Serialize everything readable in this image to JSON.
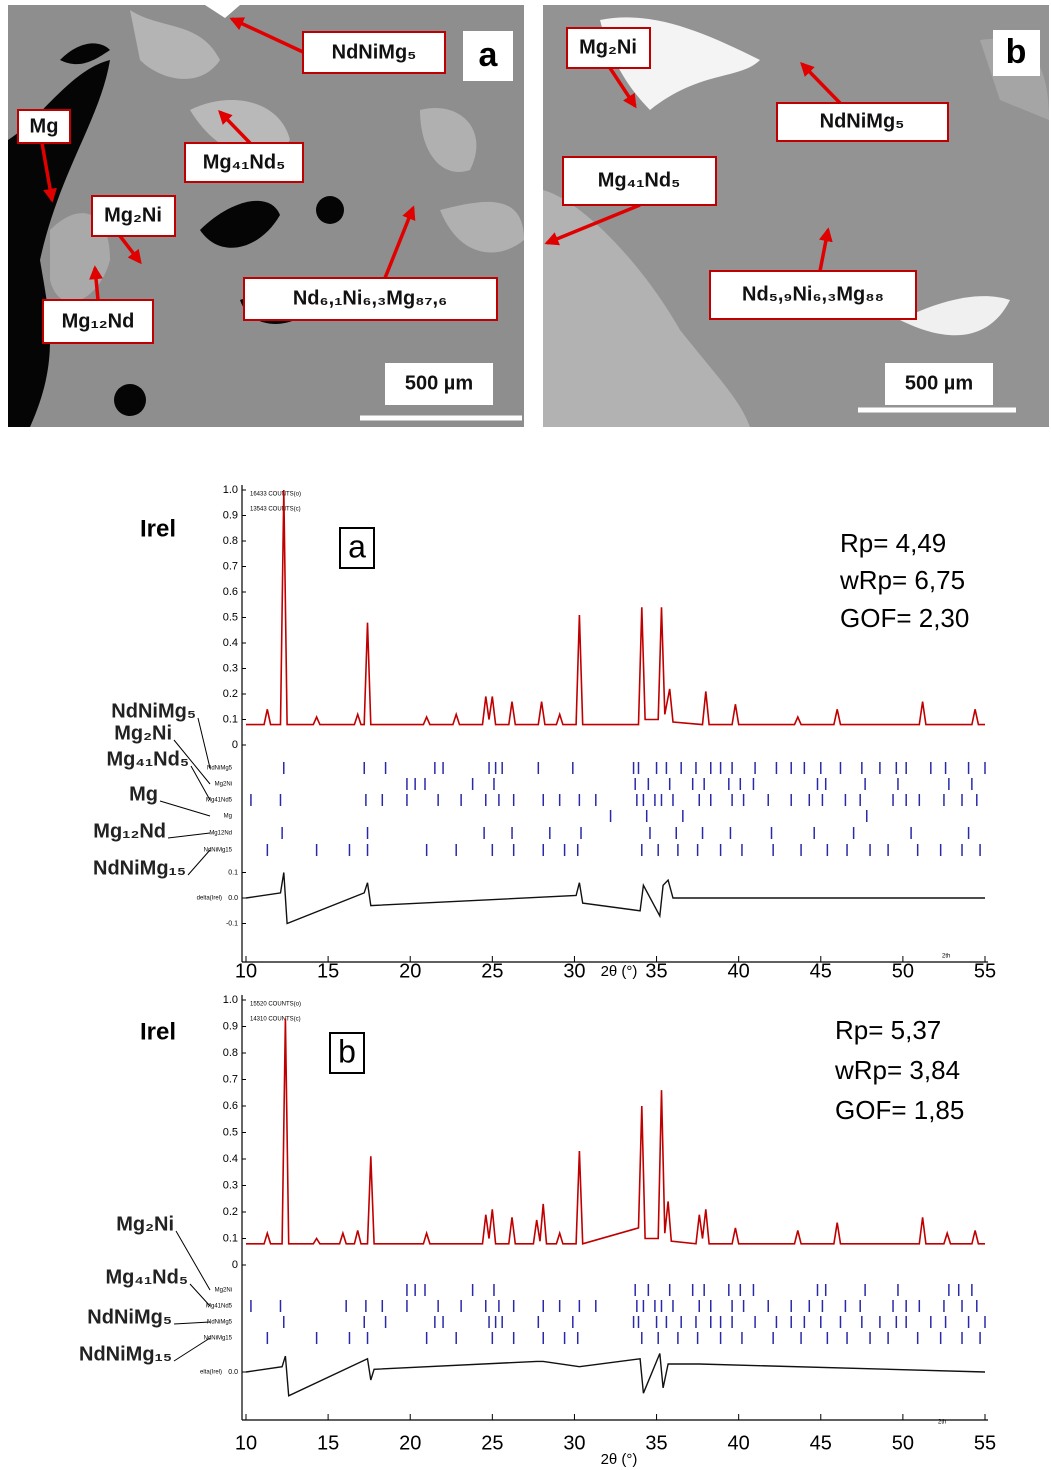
{
  "micrographs": [
    {
      "panel": "a",
      "labels": [
        "NdNiMg₅",
        "Mg₄₁Nd₅",
        "Mg",
        "Mg₂Ni",
        "Mg₁₂Nd",
        "Nd₆,₁Ni₆,₃Mg₈₇,₆"
      ],
      "scale": "500 µm"
    },
    {
      "panel": "b",
      "labels": [
        "Mg₂Ni",
        "NdNiMg₅",
        "Mg₄₁Nd₅",
        "Nd₅,₉Ni₆,₃Mg₈₈"
      ],
      "scale": "500 µm"
    }
  ],
  "chart_data": [
    {
      "type": "line",
      "title": "a",
      "ylabel": "Irel",
      "xlabel": "2θ (°)",
      "color": "#c00000",
      "annotations": [
        "16433 COUNTS(o)",
        "13543 COUNTS(c)",
        "Rp= 4,49",
        "wRp= 6,75",
        "GOF= 2,30",
        "2th"
      ],
      "xlim": [
        10,
        55
      ],
      "xticks": [
        10,
        15,
        20,
        25,
        30,
        35,
        40,
        45,
        50,
        55
      ],
      "ylim": [
        0,
        1
      ],
      "yticks": [
        {
          "value": 1,
          "label": "1.0"
        },
        0.9,
        0.8,
        0.7,
        0.6,
        0.5,
        0.4,
        0.3,
        0.2,
        0.1,
        0
      ],
      "x": [
        10,
        11.1,
        11.3,
        11.5,
        12.1,
        12.3,
        12.5,
        14.1,
        14.3,
        14.5,
        16.6,
        16.8,
        17.0,
        17.2,
        17.4,
        17.6,
        20.8,
        21.0,
        21.2,
        22.6,
        22.8,
        23.0,
        24.4,
        24.6,
        24.8,
        25.0,
        25.2,
        26.0,
        26.2,
        26.4,
        27.8,
        28.0,
        28.2,
        28.9,
        29.1,
        29.3,
        30.1,
        30.3,
        30.5,
        33.9,
        34.1,
        34.3,
        35.1,
        35.3,
        35.5,
        35.8,
        36.0,
        37.8,
        38.0,
        38.2,
        39.6,
        39.8,
        40.0,
        43.4,
        43.6,
        43.8,
        45.8,
        46.0,
        46.2,
        51.0,
        51.2,
        51.4,
        54.2,
        54.4,
        54.6,
        55
      ],
      "values": [
        0.08,
        0.08,
        0.14,
        0.08,
        0.08,
        1.0,
        0.08,
        0.08,
        0.11,
        0.08,
        0.08,
        0.12,
        0.08,
        0.08,
        0.48,
        0.08,
        0.08,
        0.11,
        0.08,
        0.08,
        0.12,
        0.08,
        0.08,
        0.19,
        0.1,
        0.19,
        0.08,
        0.08,
        0.17,
        0.08,
        0.08,
        0.17,
        0.08,
        0.08,
        0.12,
        0.08,
        0.08,
        0.51,
        0.08,
        0.08,
        0.54,
        0.1,
        0.1,
        0.54,
        0.12,
        0.22,
        0.09,
        0.08,
        0.21,
        0.08,
        0.08,
        0.16,
        0.08,
        0.08,
        0.11,
        0.08,
        0.08,
        0.14,
        0.08,
        0.08,
        0.17,
        0.08,
        0.08,
        0.14,
        0.08,
        0.08
      ],
      "phases": [
        {
          "name": "NdNiMg₅",
          "label": "NdNiMg5",
          "positions": [
            12.3,
            17.2,
            18.5,
            21.5,
            22.0,
            24.8,
            25.2,
            25.6,
            27.8,
            29.9,
            33.6,
            33.9,
            35.0,
            35.6,
            36.5,
            37.4,
            38.3,
            38.9,
            39.6,
            41.0,
            42.3,
            43.2,
            44.0,
            45.0,
            46.2,
            47.5,
            48.6,
            49.6,
            50.2,
            51.7,
            52.6,
            54.0,
            55.0
          ]
        },
        {
          "name": "Mg₂Ni",
          "label": "Mg2Ni",
          "positions": [
            19.8,
            20.3,
            20.9,
            23.8,
            25.1,
            33.7,
            34.5,
            35.8,
            37.2,
            37.9,
            39.4,
            40.1,
            40.9,
            44.8,
            45.3,
            47.7,
            49.7,
            52.8,
            54.2
          ]
        },
        {
          "name": "Mg₄₁Nd₅",
          "label": "Mg41Nd5",
          "positions": [
            10.3,
            12.1,
            17.3,
            18.3,
            19.8,
            21.7,
            23.1,
            24.6,
            25.4,
            26.3,
            28.1,
            29.1,
            30.3,
            31.3,
            33.8,
            34.2,
            34.9,
            35.3,
            36.0,
            37.6,
            38.3,
            39.6,
            40.3,
            41.8,
            43.2,
            44.3,
            45.1,
            46.5,
            47.4,
            49.4,
            50.2,
            51.0,
            52.5,
            53.6,
            54.5
          ]
        },
        {
          "name": "Mg",
          "label": "Mg",
          "positions": [
            32.2,
            34.4,
            36.6,
            47.8
          ]
        },
        {
          "name": "Mg₁₂Nd",
          "label": "Mg12Nd",
          "positions": [
            12.2,
            17.4,
            24.5,
            26.2,
            28.5,
            30.4,
            34.6,
            36.2,
            37.8,
            39.5,
            42.0,
            44.6,
            47.0,
            50.5,
            54.0
          ]
        },
        {
          "name": "NdNiMg₁₅",
          "label": "NdNiMg15",
          "positions": [
            11.3,
            14.3,
            16.3,
            17.4,
            21.0,
            22.8,
            25.0,
            26.3,
            28.1,
            29.4,
            30.2,
            34.1,
            35.1,
            36.3,
            37.5,
            38.9,
            40.2,
            42.1,
            43.8,
            45.4,
            46.6,
            48.0,
            49.1,
            50.9,
            52.3,
            53.6,
            54.7
          ]
        }
      ],
      "difference": {
        "label": "delta(Irel)",
        "yticks": [
          0.1,
          {
            "value": 0,
            "label": "0.0"
          },
          -0.1
        ],
        "x": [
          10,
          12.1,
          12.3,
          12.5,
          17.2,
          17.4,
          17.6,
          30.1,
          30.3,
          30.5,
          34.0,
          34.2,
          35.2,
          35.4,
          35.7,
          36.0,
          55
        ],
        "values": [
          0,
          0.02,
          0.1,
          -0.1,
          0.02,
          0.06,
          -0.03,
          0.01,
          0.06,
          -0.02,
          -0.05,
          0.05,
          -0.07,
          0.05,
          0.07,
          0,
          0
        ]
      }
    },
    {
      "type": "line",
      "title": "b",
      "ylabel": "Irel",
      "xlabel": "2θ (°)",
      "color": "#c00000",
      "annotations": [
        "15520 COUNTS(o)",
        "14310 COUNTS(c)",
        "Rp= 5,37",
        "wRp= 3,84",
        "GOF= 1,85",
        "2th"
      ],
      "xlim": [
        10,
        55
      ],
      "xticks": [
        10,
        15,
        20,
        25,
        30,
        35,
        40,
        45,
        50,
        55
      ],
      "ylim": [
        0,
        1
      ],
      "yticks": [
        {
          "value": 1,
          "label": "1.0"
        },
        0.9,
        0.8,
        0.7,
        0.6,
        0.5,
        0.4,
        0.3,
        0.2,
        0.1,
        0
      ],
      "x": [
        10,
        11.1,
        11.3,
        11.5,
        12.2,
        12.4,
        12.6,
        14.1,
        14.3,
        14.5,
        15.7,
        15.9,
        16.1,
        16.6,
        16.8,
        17.0,
        17.4,
        17.6,
        17.8,
        20.8,
        21.0,
        21.2,
        24.4,
        24.6,
        24.8,
        25.0,
        25.2,
        26.0,
        26.2,
        26.4,
        27.5,
        27.7,
        27.9,
        28.1,
        28.3,
        28.9,
        29.1,
        29.3,
        30.1,
        30.3,
        30.5,
        33.9,
        34.1,
        34.3,
        35.1,
        35.3,
        35.5,
        35.7,
        35.9,
        37.4,
        37.6,
        37.8,
        38.0,
        38.2,
        39.6,
        39.8,
        40.0,
        43.4,
        43.6,
        43.8,
        45.8,
        46.0,
        46.2,
        51.0,
        51.2,
        51.4,
        52.5,
        52.7,
        52.9,
        54.2,
        54.4,
        54.6,
        55
      ],
      "values": [
        0.08,
        0.08,
        0.12,
        0.08,
        0.08,
        0.93,
        0.08,
        0.08,
        0.1,
        0.08,
        0.08,
        0.12,
        0.08,
        0.08,
        0.13,
        0.08,
        0.08,
        0.41,
        0.08,
        0.08,
        0.12,
        0.08,
        0.08,
        0.19,
        0.1,
        0.21,
        0.08,
        0.08,
        0.18,
        0.08,
        0.08,
        0.17,
        0.09,
        0.23,
        0.08,
        0.08,
        0.12,
        0.08,
        0.08,
        0.43,
        0.08,
        0.14,
        0.6,
        0.1,
        0.1,
        0.66,
        0.12,
        0.24,
        0.09,
        0.08,
        0.19,
        0.1,
        0.21,
        0.08,
        0.08,
        0.14,
        0.08,
        0.08,
        0.13,
        0.08,
        0.08,
        0.16,
        0.08,
        0.08,
        0.18,
        0.08,
        0.08,
        0.12,
        0.08,
        0.08,
        0.13,
        0.08,
        0.08
      ],
      "phases": [
        {
          "name": "Mg₂Ni",
          "label": "Mg2Ni",
          "positions": [
            19.8,
            20.3,
            20.9,
            23.8,
            25.1,
            33.7,
            34.5,
            35.8,
            37.2,
            37.9,
            39.4,
            40.1,
            40.9,
            44.8,
            45.3,
            47.7,
            49.7,
            52.8,
            53.4,
            54.2
          ]
        },
        {
          "name": "Mg₄₁Nd₅",
          "label": "Mg41Nd5",
          "positions": [
            10.3,
            12.1,
            16.1,
            17.3,
            18.3,
            19.8,
            21.7,
            23.1,
            24.6,
            25.4,
            26.3,
            28.1,
            29.1,
            30.3,
            31.3,
            33.8,
            34.2,
            34.9,
            35.3,
            36.0,
            37.6,
            38.3,
            39.6,
            40.3,
            41.8,
            43.2,
            44.3,
            45.1,
            46.5,
            47.4,
            49.4,
            50.2,
            51.0,
            52.5,
            53.6,
            54.5
          ]
        },
        {
          "name": "NdNiMg₅",
          "label": "NdNiMg5",
          "positions": [
            12.3,
            17.2,
            18.5,
            21.5,
            22.0,
            24.8,
            25.2,
            25.6,
            27.8,
            29.9,
            33.6,
            33.9,
            35.0,
            35.6,
            36.5,
            37.4,
            38.3,
            38.9,
            39.6,
            41.0,
            42.3,
            43.2,
            44.0,
            45.0,
            46.2,
            47.5,
            48.6,
            49.6,
            50.2,
            51.7,
            52.6,
            54.0,
            55.0
          ]
        },
        {
          "name": "NdNiMg₁₅",
          "label": "NdNiMg15",
          "positions": [
            11.3,
            14.3,
            16.3,
            17.4,
            21.0,
            22.8,
            25.0,
            26.3,
            28.1,
            29.4,
            30.2,
            34.1,
            35.1,
            36.3,
            37.5,
            38.9,
            40.2,
            42.1,
            43.8,
            45.4,
            46.6,
            48.0,
            49.1,
            50.9,
            52.3,
            53.6,
            54.7
          ]
        }
      ],
      "difference": {
        "label": "elta(Irel)",
        "yticks": [
          {
            "value": 0,
            "label": "0.0"
          }
        ],
        "x": [
          10,
          12.2,
          12.4,
          12.6,
          17.4,
          17.6,
          17.8,
          27.7,
          28.1,
          30.3,
          34.0,
          34.2,
          35.2,
          35.4,
          35.7,
          37.6,
          55
        ],
        "values": [
          0,
          0.02,
          0.06,
          -0.09,
          0.05,
          -0.03,
          0.01,
          0.04,
          0.04,
          0.02,
          0.05,
          -0.08,
          0.07,
          -0.06,
          0.03,
          0.03,
          0
        ]
      }
    }
  ]
}
